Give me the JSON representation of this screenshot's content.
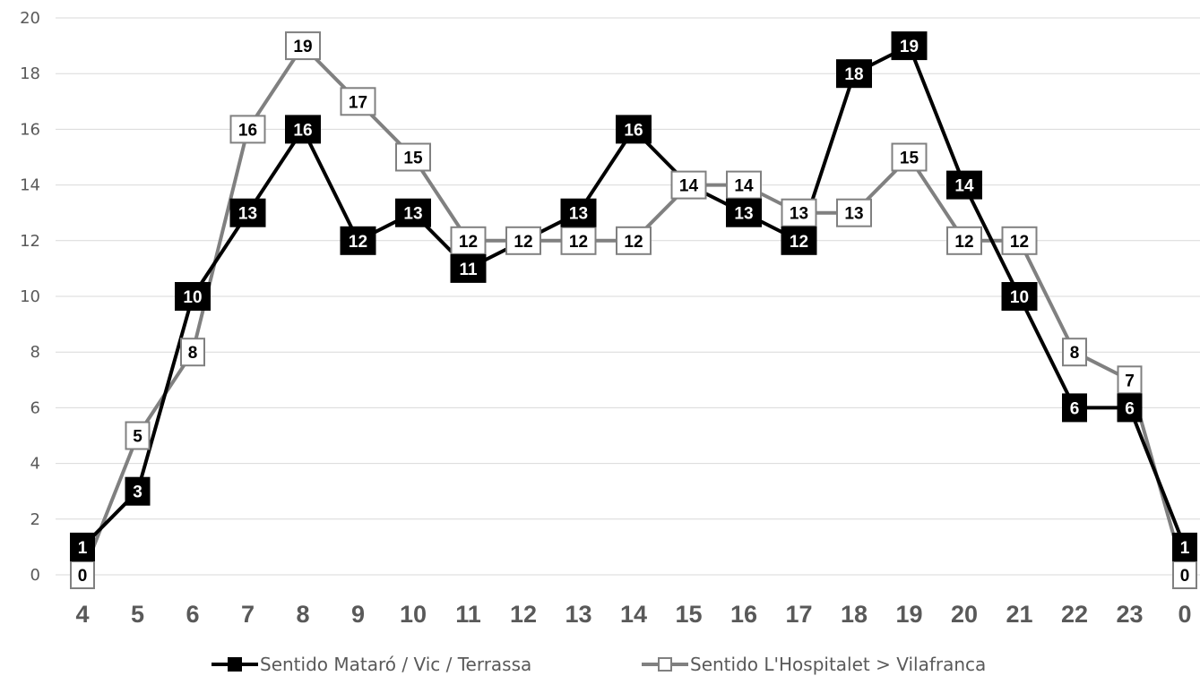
{
  "chart_data": {
    "type": "line",
    "title": "",
    "xlabel": "",
    "ylabel": "",
    "ylim": [
      0,
      20
    ],
    "yticks": [
      0,
      2,
      4,
      6,
      8,
      10,
      12,
      14,
      16,
      18,
      20
    ],
    "grid": "horizontal",
    "legend_position": "bottom",
    "categories": [
      "4",
      "5",
      "6",
      "7",
      "8",
      "9",
      "10",
      "11",
      "12",
      "13",
      "14",
      "15",
      "16",
      "17",
      "18",
      "19",
      "20",
      "21",
      "22",
      "23",
      "0"
    ],
    "series": [
      {
        "name": "Sentido Mataró / Vic / Terrassa",
        "color": "#000000",
        "marker": "filled-square",
        "values": [
          1,
          3,
          10,
          13,
          16,
          12,
          13,
          11,
          12,
          13,
          16,
          14,
          13,
          12,
          18,
          19,
          14,
          10,
          6,
          6,
          1
        ],
        "labels": [
          1,
          3,
          10,
          13,
          16,
          12,
          13,
          11,
          null,
          13,
          16,
          null,
          13,
          12,
          18,
          19,
          14,
          10,
          6,
          6,
          1
        ]
      },
      {
        "name": "Sentido L'Hospitalet > Vilafranca",
        "color": "#808080",
        "marker": "hollow-square",
        "values": [
          0,
          5,
          8,
          16,
          19,
          17,
          15,
          12,
          12,
          12,
          12,
          14,
          14,
          13,
          13,
          15,
          12,
          12,
          8,
          7,
          0
        ],
        "labels": [
          0,
          5,
          8,
          16,
          19,
          17,
          15,
          12,
          12,
          12,
          12,
          14,
          14,
          13,
          13,
          15,
          12,
          12,
          8,
          7,
          0
        ]
      }
    ]
  }
}
